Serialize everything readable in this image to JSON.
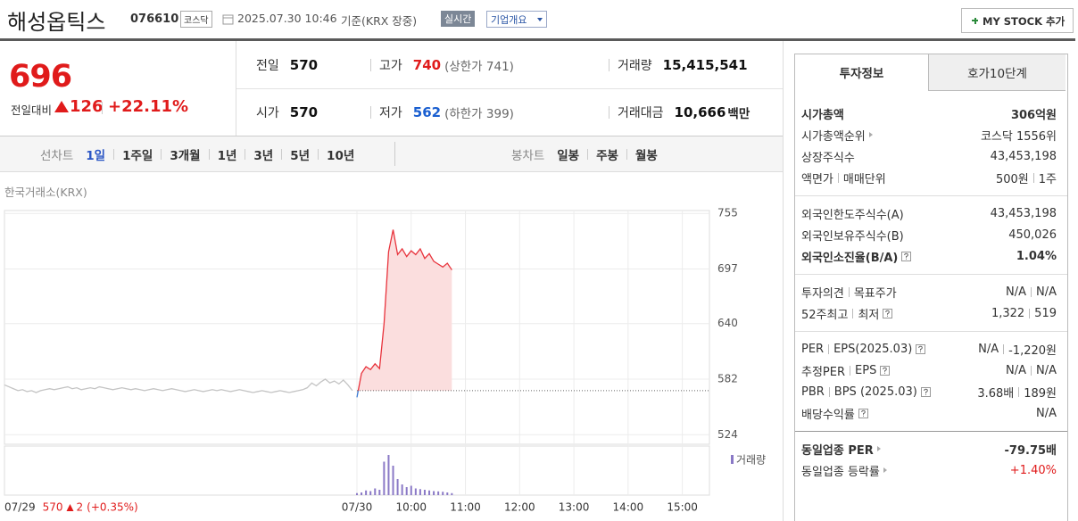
{
  "header": {
    "name": "해성옵틱스",
    "code": "076610",
    "market": "코스닥",
    "datetime": "2025.07.30 10:46",
    "basis": "기준(KRX 장중)",
    "realtime": "실시간",
    "company_info": "기업개요",
    "my_stock": "MY STOCK 추가"
  },
  "price": {
    "current": "696",
    "change_label": "전일대비",
    "change": "126",
    "change_pct": "+22.11%",
    "color": "#e01b1b"
  },
  "quotes": [
    {
      "label": "전일",
      "value": "570"
    },
    {
      "label": "고가",
      "value": "740",
      "sub": "(상한가 741)",
      "color": "#e01b1b"
    },
    {
      "label": "거래량",
      "value": "15,415,541"
    },
    {
      "label": "시가",
      "value": "570"
    },
    {
      "label": "저가",
      "value": "562",
      "sub": "(하한가 399)",
      "color": "#1a5fd0"
    },
    {
      "label": "거래대금",
      "value": "10,666",
      "unit": "백만"
    }
  ],
  "chart_tabs": {
    "line_label": "선차트",
    "periods": [
      "1일",
      "1주일",
      "3개월",
      "1년",
      "3년",
      "5년",
      "10년"
    ],
    "active": 0,
    "candle_label": "봉차트",
    "candle_periods": [
      "일봉",
      "주봉",
      "월봉"
    ]
  },
  "chart_data": {
    "type": "line",
    "source": "한국거래소(KRX)",
    "categories": [
      "07/29",
      null,
      null,
      null,
      null,
      null,
      null,
      null,
      null,
      null,
      null,
      null,
      null,
      null,
      null,
      null,
      null,
      null,
      null,
      null,
      null,
      null,
      null,
      null,
      null,
      null,
      null,
      null,
      null,
      null,
      null,
      null,
      null,
      null,
      null,
      null,
      null,
      null,
      null,
      null,
      null,
      null,
      null,
      null,
      null,
      null,
      null,
      null,
      null,
      null,
      null,
      null,
      null,
      null,
      null,
      null,
      null,
      null,
      null,
      null,
      null,
      null,
      null,
      null,
      null,
      null,
      null,
      null,
      null,
      null,
      null,
      null,
      null,
      null,
      null,
      null,
      null,
      null,
      "07/30",
      null,
      null,
      null,
      null,
      null,
      null,
      null,
      null,
      null,
      null,
      null,
      "10:00",
      null,
      null,
      null,
      null,
      null,
      null,
      null,
      null,
      null,
      null,
      null,
      "11:00",
      null,
      null,
      null,
      null,
      null,
      null,
      null,
      null,
      null,
      null,
      null,
      "12:00",
      null,
      null,
      null,
      null,
      null,
      null,
      null,
      null,
      null,
      null,
      null,
      "13:00",
      null,
      null,
      null,
      null,
      null,
      null,
      null,
      null,
      null,
      null,
      null,
      "14:00",
      null,
      null,
      null,
      null,
      null,
      null,
      null,
      null,
      null,
      null,
      null,
      "15:00",
      null,
      null,
      null,
      null,
      null,
      null
    ],
    "series": [
      {
        "color": "#c4c4c4",
        "values": [
          576,
          574,
          572,
          570,
          571,
          569,
          570,
          568,
          570,
          571,
          572,
          571,
          572,
          573,
          574,
          572,
          573,
          571,
          572,
          573,
          572,
          574,
          573,
          572,
          571,
          572,
          573,
          572,
          571,
          572,
          571,
          570,
          571,
          572,
          571,
          570,
          571,
          572,
          571,
          570,
          569,
          570,
          571,
          570,
          569,
          570,
          571,
          570,
          571,
          570,
          569,
          570,
          571,
          570,
          569,
          568,
          569,
          570,
          569,
          568,
          569,
          570,
          569,
          568,
          569,
          570,
          571,
          573,
          578,
          575,
          579,
          582,
          578,
          580,
          577,
          581,
          576,
          570,
          null,
          null,
          null,
          null,
          null,
          null,
          null,
          null,
          null,
          null,
          null,
          null,
          null,
          null,
          null,
          null,
          null,
          null,
          null,
          null,
          null,
          null,
          null,
          null,
          null,
          null,
          null,
          null,
          null,
          null,
          null,
          null,
          null,
          null,
          null,
          null,
          null,
          null,
          null,
          null,
          null,
          null,
          null,
          null,
          null,
          null,
          null,
          null,
          null,
          null,
          null,
          null,
          null,
          null,
          null,
          null,
          null,
          null,
          null,
          null,
          null,
          null,
          null,
          null,
          null,
          null,
          null,
          null,
          null,
          null,
          null,
          null,
          null,
          null,
          null,
          null,
          null,
          null,
          null
        ]
      },
      {
        "color": "#e8333c",
        "below_color": "#3a7bd5",
        "fill": "#fbdede",
        "values": [
          null,
          null,
          null,
          null,
          null,
          null,
          null,
          null,
          null,
          null,
          null,
          null,
          null,
          null,
          null,
          null,
          null,
          null,
          null,
          null,
          null,
          null,
          null,
          null,
          null,
          null,
          null,
          null,
          null,
          null,
          null,
          null,
          null,
          null,
          null,
          null,
          null,
          null,
          null,
          null,
          null,
          null,
          null,
          null,
          null,
          null,
          null,
          null,
          null,
          null,
          null,
          null,
          null,
          null,
          null,
          null,
          null,
          null,
          null,
          null,
          null,
          null,
          null,
          null,
          null,
          null,
          null,
          null,
          null,
          null,
          null,
          null,
          null,
          null,
          null,
          null,
          null,
          null,
          563,
          588,
          595,
          592,
          598,
          593,
          640,
          715,
          738,
          712,
          718,
          710,
          716,
          712,
          718,
          708,
          713,
          705,
          702,
          699,
          703,
          696,
          null,
          null,
          null,
          null,
          null,
          null,
          null,
          null,
          null,
          null,
          null,
          null,
          null,
          null,
          null,
          null,
          null,
          null,
          null,
          null,
          null,
          null,
          null,
          null,
          null,
          null,
          null,
          null,
          null,
          null,
          null,
          null,
          null,
          null,
          null,
          null,
          null,
          null,
          null,
          null,
          null,
          null,
          null,
          null,
          null,
          null,
          null,
          null,
          null,
          null,
          null,
          null,
          null,
          null,
          null,
          null,
          null
        ]
      }
    ],
    "volume": {
      "name": "거래량",
      "color": "#8a79c6",
      "values": [
        null,
        null,
        null,
        null,
        null,
        null,
        null,
        null,
        null,
        null,
        null,
        null,
        null,
        null,
        null,
        null,
        null,
        null,
        null,
        null,
        null,
        null,
        null,
        null,
        null,
        null,
        null,
        null,
        null,
        null,
        null,
        null,
        null,
        null,
        null,
        null,
        null,
        null,
        null,
        null,
        null,
        null,
        null,
        null,
        null,
        null,
        null,
        null,
        null,
        null,
        null,
        null,
        null,
        null,
        null,
        null,
        null,
        null,
        null,
        null,
        null,
        null,
        null,
        null,
        null,
        null,
        null,
        null,
        null,
        null,
        null,
        null,
        null,
        null,
        null,
        null,
        null,
        null,
        150000,
        200000,
        350000,
        300000,
        500000,
        400000,
        2500000,
        3000000,
        2200000,
        1200000,
        800000,
        600000,
        700000,
        500000,
        450000,
        400000,
        350000,
        300000,
        280000,
        250000,
        200000,
        150000,
        null,
        null,
        null,
        null,
        null,
        null,
        null,
        null,
        null,
        null,
        null,
        null,
        null,
        null,
        null,
        null,
        null,
        null,
        null,
        null,
        null,
        null,
        null,
        null,
        null,
        null,
        null,
        null,
        null,
        null,
        null,
        null,
        null,
        null,
        null,
        null,
        null,
        null,
        null,
        null,
        null,
        null,
        null,
        null,
        null,
        null,
        null,
        null,
        null,
        null,
        null,
        null,
        null,
        null,
        null,
        null,
        null
      ]
    },
    "ylim": [
      514,
      758
    ],
    "yticks": [
      524,
      582,
      640,
      697,
      755
    ],
    "grid": true,
    "prev_close": 570,
    "prev_change": "2",
    "prev_change_pct": "(+0.35%)",
    "prev_color": "#e01b1b"
  },
  "info": {
    "tabs": [
      "투자정보",
      "호가10단계"
    ],
    "active": 0,
    "groups": [
      [
        {
          "label": "시가총액",
          "value": "306억원",
          "bold": true
        },
        {
          "label": "시가총액순위",
          "arrow": true,
          "value": "코스닥 1556위"
        },
        {
          "label": "상장주식수",
          "value": "43,453,198"
        },
        {
          "label": [
            "액면가",
            "매매단위"
          ],
          "value": [
            "500원",
            "1주"
          ]
        }
      ],
      [
        {
          "label": "외국인한도주식수(A)",
          "value": "43,453,198"
        },
        {
          "label": "외국인보유주식수(B)",
          "value": "450,026"
        },
        {
          "label": "외국인소진율(B/A)",
          "help": true,
          "value": "1.04%",
          "bold": true
        }
      ],
      [
        {
          "label": [
            "투자의견",
            "목표주가"
          ],
          "value": [
            "N/A",
            "N/A"
          ]
        },
        {
          "label": [
            "52주최고",
            "최저"
          ],
          "help": true,
          "value": [
            "1,322",
            "519"
          ]
        }
      ],
      [
        {
          "label": [
            "PER",
            "EPS(2025.03)"
          ],
          "help": true,
          "value": [
            "N/A",
            "-1,220원"
          ]
        },
        {
          "label": [
            "추정PER",
            "EPS"
          ],
          "help": true,
          "value": [
            "N/A",
            "N/A"
          ]
        },
        {
          "label": [
            "PBR",
            "BPS (2025.03)"
          ],
          "help": true,
          "value": [
            "3.68배",
            "189원"
          ]
        },
        {
          "label": "배당수익률",
          "help": true,
          "value": "N/A"
        }
      ],
      [
        {
          "label": "동일업종 PER",
          "arrow": true,
          "value": "-79.75배",
          "bold": true
        },
        {
          "label": "동일업종 등락률",
          "arrow": true,
          "value": "+1.40%",
          "color": "#e01b1b"
        }
      ]
    ]
  }
}
